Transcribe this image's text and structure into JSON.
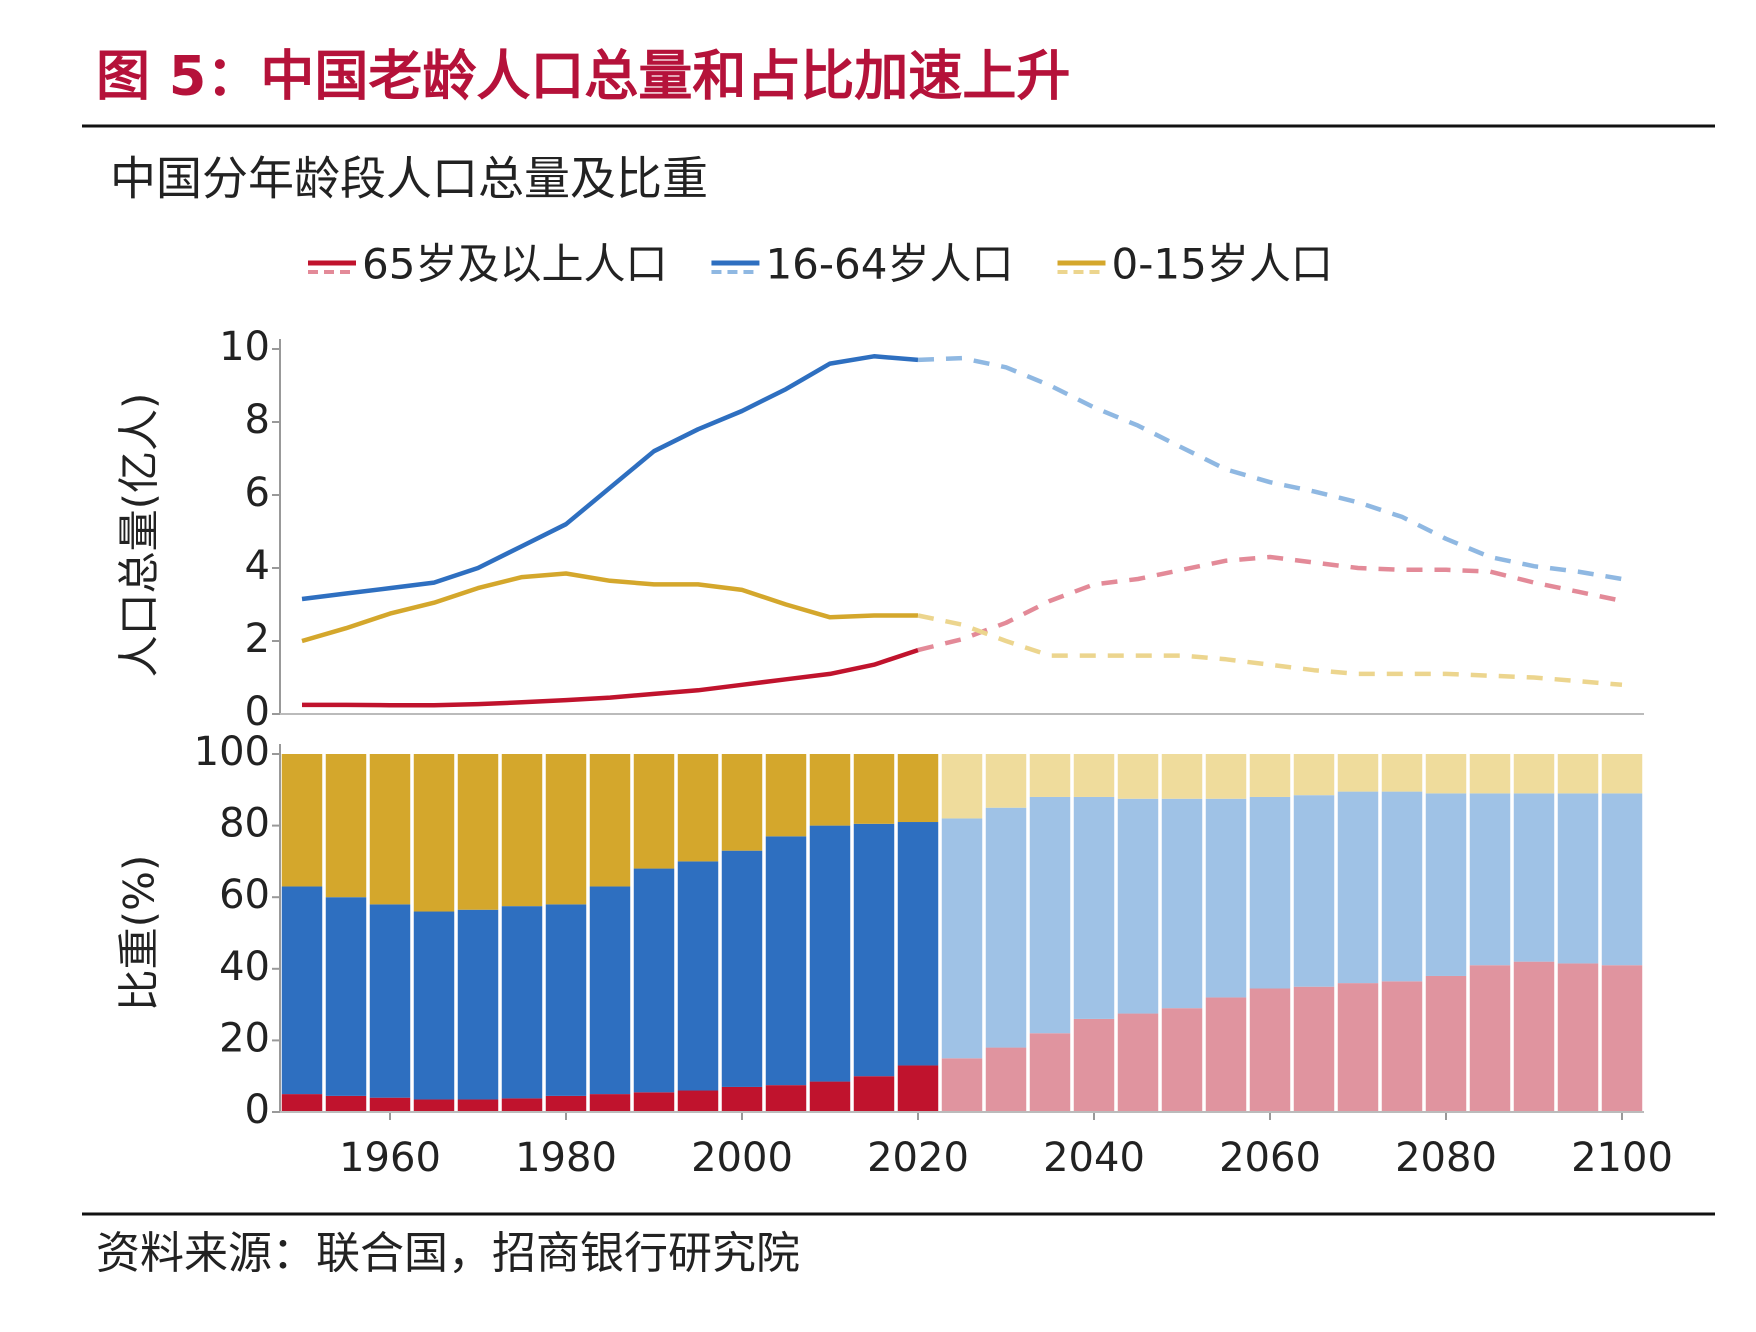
{
  "title": "图 5：中国老龄人口总量和占比加速上升",
  "subtitle": "中国分年龄段人口总量及比重",
  "source": "资料来源：联合国，招商银行研究院",
  "chart_data": [
    {
      "type": "line",
      "ylabel": "人口总量(亿人)",
      "projection_start": 2020,
      "x": [
        1950,
        1955,
        1960,
        1965,
        1970,
        1975,
        1980,
        1985,
        1990,
        1995,
        2000,
        2005,
        2010,
        2015,
        2020,
        2025,
        2030,
        2035,
        2040,
        2045,
        2050,
        2055,
        2060,
        2065,
        2070,
        2075,
        2080,
        2085,
        2090,
        2095,
        2100
      ],
      "xlim": [
        1947.5,
        2102.5
      ],
      "ylim": [
        0,
        10
      ],
      "yticks": [
        0,
        2,
        4,
        6,
        8,
        10
      ],
      "series": [
        {
          "name": "65岁及以上人口",
          "color": "#c0132d",
          "projection_color": "#e38a98",
          "values": [
            0.25,
            0.25,
            0.24,
            0.24,
            0.27,
            0.32,
            0.38,
            0.45,
            0.55,
            0.65,
            0.8,
            0.95,
            1.1,
            1.35,
            1.75,
            2.05,
            2.5,
            3.1,
            3.55,
            3.7,
            3.95,
            4.2,
            4.3,
            4.15,
            4.0,
            3.95,
            3.95,
            3.9,
            3.6,
            3.35,
            3.1
          ]
        },
        {
          "name": "16-64岁人口",
          "color": "#2e6fc0",
          "projection_color": "#8fb8e2",
          "values": [
            3.15,
            3.3,
            3.45,
            3.6,
            4.0,
            4.6,
            5.2,
            6.2,
            7.2,
            7.8,
            8.3,
            8.9,
            9.6,
            9.8,
            9.7,
            9.75,
            9.5,
            9.0,
            8.4,
            7.9,
            7.3,
            6.7,
            6.35,
            6.1,
            5.8,
            5.4,
            4.8,
            4.3,
            4.05,
            3.9,
            3.7
          ]
        },
        {
          "name": "0-15岁人口",
          "color": "#d4a72c",
          "projection_color": "#ecd58e",
          "values": [
            2.0,
            2.35,
            2.75,
            3.05,
            3.45,
            3.75,
            3.85,
            3.65,
            3.55,
            3.55,
            3.4,
            3.0,
            2.65,
            2.7,
            2.7,
            2.45,
            2.0,
            1.6,
            1.6,
            1.6,
            1.6,
            1.5,
            1.35,
            1.2,
            1.1,
            1.1,
            1.1,
            1.05,
            1.0,
            0.9,
            0.8
          ]
        }
      ]
    },
    {
      "type": "stacked_bar",
      "ylabel": "比重(%)",
      "projection_start": 2020,
      "x": [
        1950,
        1955,
        1960,
        1965,
        1970,
        1975,
        1980,
        1985,
        1990,
        1995,
        2000,
        2005,
        2010,
        2015,
        2020,
        2025,
        2030,
        2035,
        2040,
        2045,
        2050,
        2055,
        2060,
        2065,
        2070,
        2075,
        2080,
        2085,
        2090,
        2095,
        2100
      ],
      "xlim": [
        1947.5,
        2102.5
      ],
      "xticks": [
        1960,
        1980,
        2000,
        2020,
        2040,
        2060,
        2080,
        2100
      ],
      "ylim": [
        0,
        100
      ],
      "yticks": [
        0,
        20,
        40,
        60,
        80,
        100
      ],
      "series": [
        {
          "color": "#c0132d",
          "projection_color": "#e0949f",
          "values": [
            5,
            4.5,
            4,
            3.5,
            3.5,
            3.8,
            4.5,
            5,
            5.5,
            6,
            7,
            7.5,
            8.5,
            10,
            13,
            15,
            18,
            22,
            26,
            27.5,
            29,
            32,
            34.5,
            35,
            36,
            36.5,
            38,
            41,
            42,
            41.5,
            41
          ]
        },
        {
          "color": "#2e6fc0",
          "projection_color": "#9fc2e6",
          "values": [
            58,
            55.5,
            54,
            52.5,
            53,
            53.7,
            53.5,
            58,
            62.5,
            64,
            66,
            69.5,
            71.5,
            70.5,
            68,
            67,
            67,
            66,
            62,
            60,
            58.5,
            55.5,
            53.5,
            53.5,
            53.5,
            53,
            51,
            48,
            47,
            47.5,
            48
          ]
        },
        {
          "color": "#d4a72c",
          "projection_color": "#efdc9c",
          "values": [
            37,
            40,
            42,
            44,
            43.5,
            42.5,
            42,
            37,
            32,
            30,
            27,
            23,
            20,
            19.5,
            19,
            18,
            15,
            12,
            12,
            12.5,
            12.5,
            12.5,
            12,
            11.5,
            10.5,
            10.5,
            11,
            11,
            11,
            11,
            11
          ]
        }
      ]
    }
  ]
}
